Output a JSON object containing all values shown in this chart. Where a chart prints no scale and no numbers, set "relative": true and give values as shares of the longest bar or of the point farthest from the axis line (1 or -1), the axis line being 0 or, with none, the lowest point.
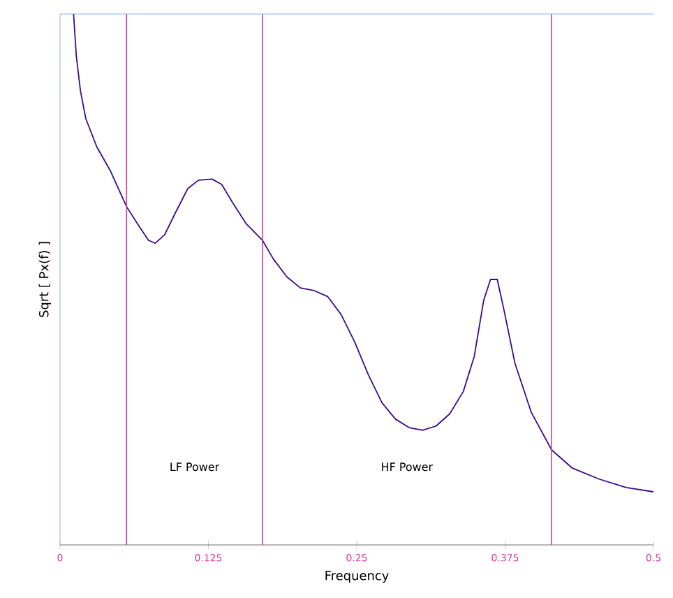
{
  "chart_data": {
    "type": "line",
    "relative": true,
    "xlabel": "Frequency",
    "ylabel": "Sqrt [ Px(f) ]",
    "xlim": [
      0,
      0.5
    ],
    "xticks": [
      0,
      0.125,
      0.25,
      0.375,
      0.5
    ],
    "x": [
      0.0114,
      0.0137,
      0.0172,
      0.0217,
      0.0309,
      0.0423,
      0.0561,
      0.0652,
      0.0744,
      0.0801,
      0.0881,
      0.0973,
      0.1076,
      0.1167,
      0.1281,
      0.1362,
      0.1453,
      0.1568,
      0.1705,
      0.1796,
      0.1911,
      0.2025,
      0.214,
      0.2254,
      0.2368,
      0.2483,
      0.2597,
      0.2712,
      0.2826,
      0.2941,
      0.3055,
      0.3169,
      0.3284,
      0.3398,
      0.349,
      0.357,
      0.3627,
      0.3684,
      0.3741,
      0.3833,
      0.397,
      0.4142,
      0.4314,
      0.4542,
      0.4771,
      0.5
    ],
    "series": [
      {
        "color": "#3a0a8a",
        "values": [
          1.0,
          0.921,
          0.855,
          0.803,
          0.75,
          0.705,
          0.637,
          0.605,
          0.574,
          0.568,
          0.584,
          0.626,
          0.671,
          0.687,
          0.689,
          0.679,
          0.645,
          0.605,
          0.574,
          0.539,
          0.505,
          0.484,
          0.479,
          0.468,
          0.434,
          0.382,
          0.321,
          0.268,
          0.237,
          0.221,
          0.216,
          0.224,
          0.247,
          0.289,
          0.355,
          0.461,
          0.5,
          0.5,
          0.442,
          0.342,
          0.25,
          0.179,
          0.145,
          0.124,
          0.108,
          0.1
        ]
      }
    ],
    "ref_lines": [
      {
        "axis": "x",
        "value": 0.056,
        "color": "#e0399a"
      },
      {
        "axis": "x",
        "value": 0.1705,
        "color": "#e0399a"
      },
      {
        "axis": "x",
        "value": 0.414,
        "color": "#e0399a"
      }
    ],
    "annotations": [
      "LF Power",
      "HF Power"
    ]
  }
}
